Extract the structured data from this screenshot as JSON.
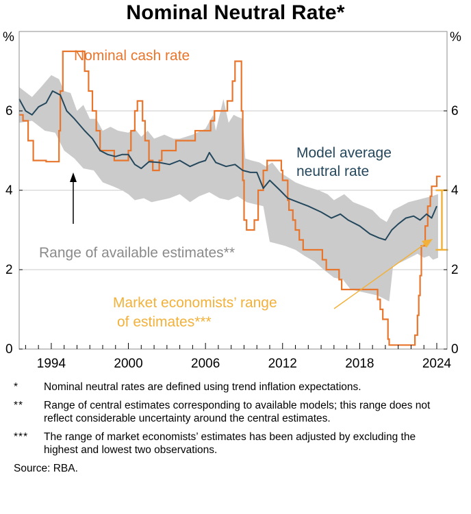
{
  "chart_data": {
    "type": "line",
    "title": "Nominal Neutral Rate*",
    "unit_left": "%",
    "unit_right": "%",
    "xlim": [
      1991.5,
      2024.8
    ],
    "ylim": [
      0,
      8
    ],
    "yticks": [
      0,
      2,
      4,
      6
    ],
    "xticks": [
      1994,
      2000,
      2006,
      2012,
      2018,
      2024
    ],
    "gridlines": [
      2,
      4,
      6
    ],
    "colors": {
      "cash": "#e8752c",
      "model": "#24475c",
      "band": "#cbcbcb",
      "market": "#f2b13a",
      "grid": "#c8c8c8"
    },
    "labels": {
      "cash": "Nominal cash rate",
      "model_line1": "Model average",
      "model_line2": "neutral rate",
      "band": "Range of available estimates**",
      "market_line1": "Market economists’ range",
      "market_line2": "of estimates***"
    },
    "series": [
      {
        "name": "Nominal cash rate",
        "type": "step",
        "points": [
          [
            1991.5,
            5.9
          ],
          [
            1991.8,
            5.75
          ],
          [
            1992.2,
            5.25
          ],
          [
            1992.6,
            4.75
          ],
          [
            1993.4,
            4.75
          ],
          [
            1993.6,
            4.72
          ],
          [
            1994.6,
            5.5
          ],
          [
            1994.7,
            6.5
          ],
          [
            1994.9,
            7.5
          ],
          [
            1996.6,
            7.0
          ],
          [
            1996.9,
            6.5
          ],
          [
            1997.2,
            6.0
          ],
          [
            1997.5,
            5.5
          ],
          [
            1997.8,
            5.0
          ],
          [
            1998.9,
            4.75
          ],
          [
            2000.0,
            5.0
          ],
          [
            2000.2,
            5.5
          ],
          [
            2000.5,
            6.0
          ],
          [
            2000.7,
            6.25
          ],
          [
            2001.1,
            5.75
          ],
          [
            2001.3,
            5.25
          ],
          [
            2001.6,
            4.75
          ],
          [
            2001.9,
            4.5
          ],
          [
            2002.4,
            4.75
          ],
          [
            2002.6,
            5.0
          ],
          [
            2003.7,
            5.25
          ],
          [
            2004.0,
            5.25
          ],
          [
            2005.2,
            5.5
          ],
          [
            2006.4,
            5.75
          ],
          [
            2006.7,
            6.0
          ],
          [
            2007.7,
            6.25
          ],
          [
            2008.1,
            6.75
          ],
          [
            2008.3,
            7.25
          ],
          [
            2008.8,
            6.0
          ],
          [
            2008.9,
            4.25
          ],
          [
            2009.0,
            3.25
          ],
          [
            2009.2,
            3.0
          ],
          [
            2009.8,
            3.25
          ],
          [
            2010.1,
            4.0
          ],
          [
            2010.5,
            4.5
          ],
          [
            2010.8,
            4.75
          ],
          [
            2011.9,
            4.5
          ],
          [
            2012.0,
            4.25
          ],
          [
            2012.4,
            3.75
          ],
          [
            2012.5,
            3.5
          ],
          [
            2012.8,
            3.25
          ],
          [
            2013.0,
            3.0
          ],
          [
            2013.3,
            2.75
          ],
          [
            2013.6,
            2.5
          ],
          [
            2015.1,
            2.25
          ],
          [
            2015.4,
            2.0
          ],
          [
            2016.4,
            1.75
          ],
          [
            2016.6,
            1.5
          ],
          [
            2019.4,
            1.25
          ],
          [
            2019.6,
            1.0
          ],
          [
            2019.8,
            0.75
          ],
          [
            2020.2,
            0.25
          ],
          [
            2020.3,
            0.1
          ],
          [
            2022.3,
            0.35
          ],
          [
            2022.5,
            0.85
          ],
          [
            2022.6,
            1.35
          ],
          [
            2022.7,
            1.85
          ],
          [
            2022.8,
            2.6
          ],
          [
            2023.1,
            3.1
          ],
          [
            2023.3,
            3.6
          ],
          [
            2023.5,
            3.85
          ],
          [
            2023.6,
            4.1
          ],
          [
            2024.0,
            4.35
          ],
          [
            2024.3,
            4.35
          ]
        ]
      },
      {
        "name": "Model average neutral rate",
        "type": "line",
        "points": [
          [
            1991.5,
            6.3
          ],
          [
            1992.0,
            6.0
          ],
          [
            1992.5,
            5.9
          ],
          [
            1993.0,
            6.1
          ],
          [
            1993.6,
            6.2
          ],
          [
            1994.1,
            6.5
          ],
          [
            1994.7,
            6.4
          ],
          [
            1995.2,
            6.0
          ],
          [
            1995.8,
            5.8
          ],
          [
            1996.6,
            5.5
          ],
          [
            1997.2,
            5.3
          ],
          [
            1997.8,
            5.0
          ],
          [
            1998.4,
            4.9
          ],
          [
            1999.0,
            4.85
          ],
          [
            1999.5,
            4.9
          ],
          [
            2000.0,
            4.9
          ],
          [
            2000.5,
            4.65
          ],
          [
            2001.0,
            4.55
          ],
          [
            2001.6,
            4.72
          ],
          [
            2002.4,
            4.7
          ],
          [
            2003.2,
            4.65
          ],
          [
            2004.0,
            4.75
          ],
          [
            2004.8,
            4.6
          ],
          [
            2005.5,
            4.7
          ],
          [
            2006.0,
            4.75
          ],
          [
            2006.3,
            4.95
          ],
          [
            2006.8,
            4.7
          ],
          [
            2007.6,
            4.6
          ],
          [
            2008.3,
            4.65
          ],
          [
            2008.9,
            4.5
          ],
          [
            2009.5,
            4.45
          ],
          [
            2010.0,
            4.45
          ],
          [
            2010.5,
            4.05
          ],
          [
            2011.0,
            4.25
          ],
          [
            2011.8,
            4.0
          ],
          [
            2012.4,
            3.8
          ],
          [
            2013.2,
            3.7
          ],
          [
            2014.0,
            3.6
          ],
          [
            2015.0,
            3.45
          ],
          [
            2015.8,
            3.3
          ],
          [
            2016.5,
            3.4
          ],
          [
            2017.1,
            3.25
          ],
          [
            2018.0,
            3.1
          ],
          [
            2018.8,
            2.9
          ],
          [
            2019.5,
            2.8
          ],
          [
            2020.0,
            2.75
          ],
          [
            2020.5,
            3.0
          ],
          [
            2021.0,
            3.15
          ],
          [
            2021.6,
            3.3
          ],
          [
            2022.2,
            3.35
          ],
          [
            2022.7,
            3.25
          ],
          [
            2023.2,
            3.4
          ],
          [
            2023.6,
            3.3
          ],
          [
            2024.0,
            3.6
          ]
        ]
      },
      {
        "name": "Range of available estimates",
        "type": "area",
        "upper": [
          [
            1991.5,
            6.6
          ],
          [
            1992.5,
            6.35
          ],
          [
            1993.2,
            6.6
          ],
          [
            1994.0,
            6.9
          ],
          [
            1994.6,
            6.8
          ],
          [
            1995.0,
            6.5
          ],
          [
            1995.5,
            6.45
          ],
          [
            1996.0,
            6.0
          ],
          [
            1996.5,
            6.15
          ],
          [
            1997.0,
            5.8
          ],
          [
            1997.5,
            5.8
          ],
          [
            1998.0,
            5.5
          ],
          [
            1998.6,
            5.6
          ],
          [
            1999.2,
            5.5
          ],
          [
            2000.0,
            5.45
          ],
          [
            2000.5,
            5.55
          ],
          [
            2001.0,
            5.35
          ],
          [
            2001.5,
            5.5
          ],
          [
            2002.0,
            5.3
          ],
          [
            2002.8,
            5.4
          ],
          [
            2003.5,
            5.3
          ],
          [
            2004.0,
            5.3
          ],
          [
            2005.0,
            5.4
          ],
          [
            2006.0,
            5.55
          ],
          [
            2006.6,
            5.9
          ],
          [
            2006.8,
            5.5
          ],
          [
            2007.4,
            6.3
          ],
          [
            2007.8,
            5.7
          ],
          [
            2008.2,
            5.9
          ],
          [
            2008.5,
            5.85
          ],
          [
            2008.9,
            5.8
          ],
          [
            2009.1,
            4.8
          ],
          [
            2009.6,
            4.75
          ],
          [
            2010.2,
            4.7
          ],
          [
            2010.7,
            4.6
          ],
          [
            2011.2,
            4.7
          ],
          [
            2011.8,
            4.45
          ],
          [
            2012.3,
            4.35
          ],
          [
            2013.0,
            4.2
          ],
          [
            2013.8,
            4.1
          ],
          [
            2014.8,
            4.0
          ],
          [
            2015.5,
            3.9
          ],
          [
            2016.0,
            3.75
          ],
          [
            2016.8,
            3.9
          ],
          [
            2017.5,
            3.7
          ],
          [
            2018.3,
            3.6
          ],
          [
            2019.0,
            3.5
          ],
          [
            2019.6,
            3.3
          ],
          [
            2020.1,
            3.2
          ],
          [
            2020.6,
            3.5
          ],
          [
            2021.2,
            3.6
          ],
          [
            2021.8,
            3.7
          ],
          [
            2022.4,
            3.75
          ],
          [
            2023.0,
            3.8
          ],
          [
            2023.6,
            3.85
          ],
          [
            2024.1,
            3.9
          ]
        ],
        "lower": [
          [
            1991.5,
            5.7
          ],
          [
            1992.5,
            5.75
          ],
          [
            1993.5,
            5.5
          ],
          [
            1994.3,
            5.45
          ],
          [
            1995.0,
            5.0
          ],
          [
            1995.8,
            4.8
          ],
          [
            1996.5,
            4.55
          ],
          [
            1997.3,
            4.5
          ],
          [
            1998.0,
            4.2
          ],
          [
            1998.8,
            4.1
          ],
          [
            1999.5,
            4.0
          ],
          [
            2000.0,
            3.9
          ],
          [
            2000.5,
            3.75
          ],
          [
            2001.2,
            3.8
          ],
          [
            2001.8,
            3.7
          ],
          [
            2002.5,
            3.75
          ],
          [
            2003.2,
            3.8
          ],
          [
            2004.0,
            3.9
          ],
          [
            2004.8,
            3.7
          ],
          [
            2005.5,
            3.85
          ],
          [
            2006.3,
            3.95
          ],
          [
            2007.1,
            3.8
          ],
          [
            2007.8,
            3.75
          ],
          [
            2008.5,
            3.85
          ],
          [
            2009.2,
            3.7
          ],
          [
            2009.8,
            3.65
          ],
          [
            2010.5,
            3.6
          ],
          [
            2011.0,
            2.7
          ],
          [
            2011.6,
            2.65
          ],
          [
            2012.2,
            2.6
          ],
          [
            2013.0,
            2.5
          ],
          [
            2013.7,
            2.35
          ],
          [
            2014.5,
            2.2
          ],
          [
            2015.2,
            2.0
          ],
          [
            2016.0,
            1.8
          ],
          [
            2016.7,
            1.75
          ],
          [
            2017.3,
            1.5
          ],
          [
            2018.0,
            1.45
          ],
          [
            2018.7,
            1.4
          ],
          [
            2019.4,
            1.35
          ],
          [
            2020.0,
            1.25
          ],
          [
            2020.3,
            1.2
          ],
          [
            2020.6,
            2.1
          ],
          [
            2021.3,
            2.2
          ],
          [
            2021.9,
            2.3
          ],
          [
            2022.5,
            2.4
          ],
          [
            2023.0,
            2.3
          ],
          [
            2023.4,
            2.35
          ],
          [
            2023.7,
            2.25
          ],
          [
            2024.1,
            2.3
          ]
        ]
      },
      {
        "name": "Market economists’ range of estimates",
        "type": "range",
        "x": 2024.4,
        "low": 2.5,
        "high": 4.0
      }
    ]
  },
  "notes": [
    {
      "mark": "*",
      "text": "Nominal neutral rates are defined using trend inflation expectations."
    },
    {
      "mark": "**",
      "text": "Range of central estimates corresponding to available models; this range does not reflect considerable uncertainty around the central estimates."
    },
    {
      "mark": "***",
      "text": "The range of market economists’ estimates has been adjusted by excluding the highest and lowest two observations."
    }
  ],
  "source": "Source: RBA."
}
